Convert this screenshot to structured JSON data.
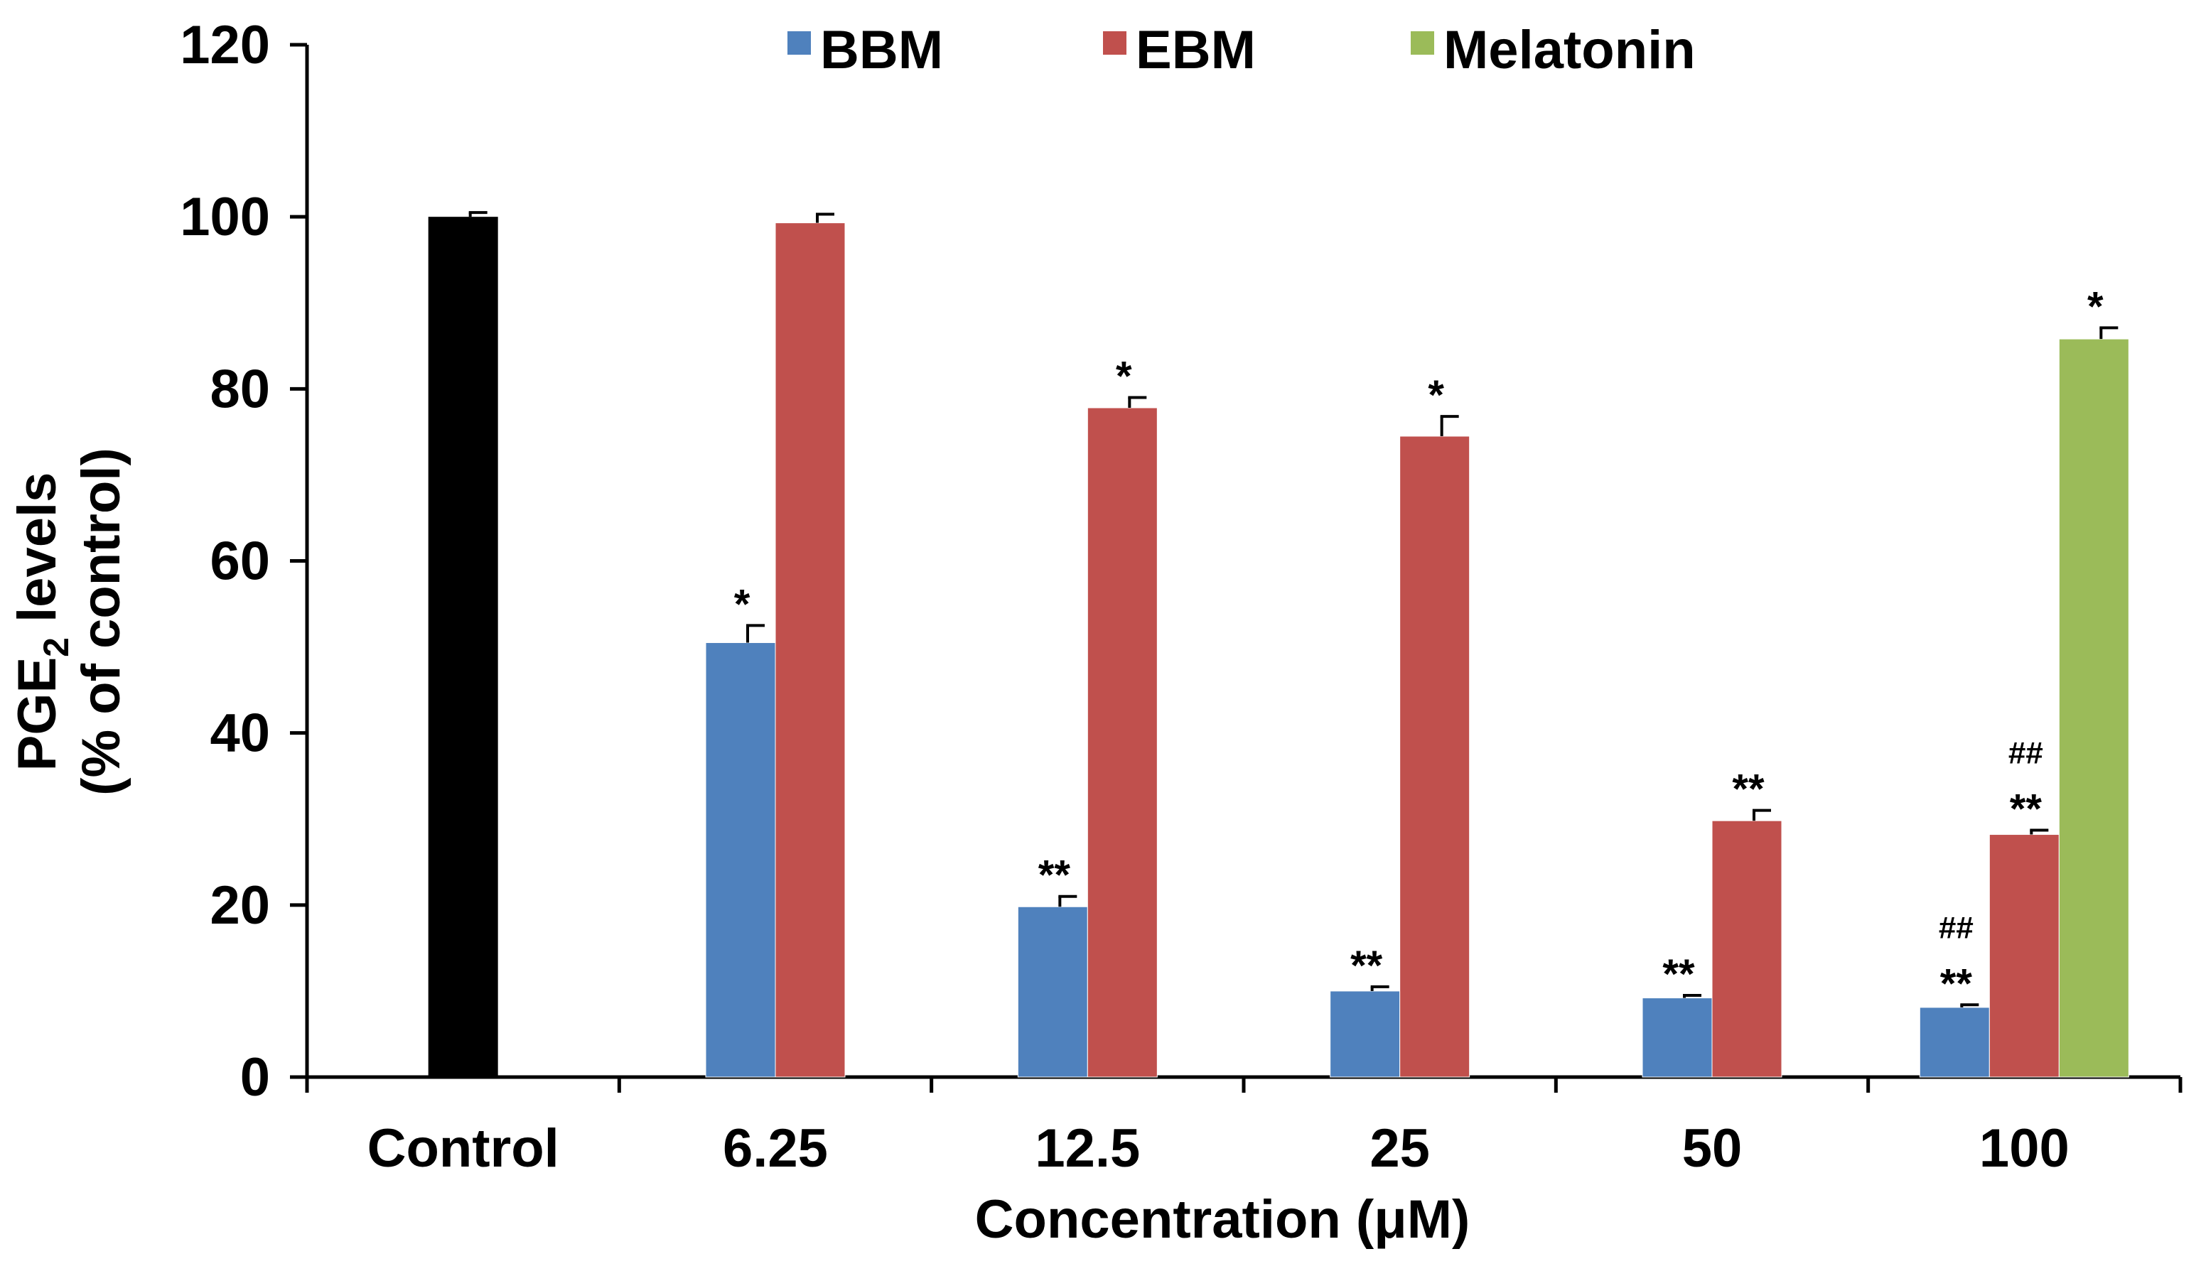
{
  "chart_data": {
    "type": "bar",
    "title": "",
    "xlabel": "Concentration (μM)",
    "ylabel_main": "PGE",
    "ylabel_subscript": "2",
    "ylabel_suffix": " levels",
    "ylabel_line2": "(% of control)",
    "ylim": [
      0,
      120
    ],
    "yticks": [
      0,
      20,
      40,
      60,
      80,
      100,
      120
    ],
    "grid": false,
    "legend_position": "top",
    "categories": [
      "Control",
      "6.25",
      "12.5",
      "25",
      "50",
      "100"
    ],
    "control": {
      "name": "Control",
      "color": "#000000",
      "value": 100,
      "error": 0.5
    },
    "series": [
      {
        "name": "BBM",
        "color": "#4f81bd",
        "values": [
          null,
          50.5,
          19.8,
          10.0,
          9.2,
          8.1
        ],
        "errors": [
          null,
          2.0,
          1.2,
          0.5,
          0.3,
          0.3
        ],
        "annotations": [
          null,
          [
            "*"
          ],
          [
            "**"
          ],
          [
            "**"
          ],
          [
            "**"
          ],
          [
            "**",
            "##"
          ]
        ]
      },
      {
        "name": "EBM",
        "color": "#c0504d",
        "values": [
          null,
          99.3,
          77.8,
          74.5,
          29.8,
          28.2
        ],
        "errors": [
          null,
          1.0,
          1.2,
          2.3,
          1.2,
          0.5
        ],
        "annotations": [
          null,
          [],
          [
            "*"
          ],
          [
            "*"
          ],
          [
            "**"
          ],
          [
            "**",
            "##"
          ]
        ]
      },
      {
        "name": "Melatonin",
        "color": "#9bbb59",
        "values": [
          null,
          null,
          null,
          null,
          null,
          85.8
        ],
        "errors": [
          null,
          null,
          null,
          null,
          null,
          1.3
        ],
        "annotations": [
          null,
          null,
          null,
          null,
          null,
          [
            "*"
          ]
        ]
      }
    ]
  }
}
